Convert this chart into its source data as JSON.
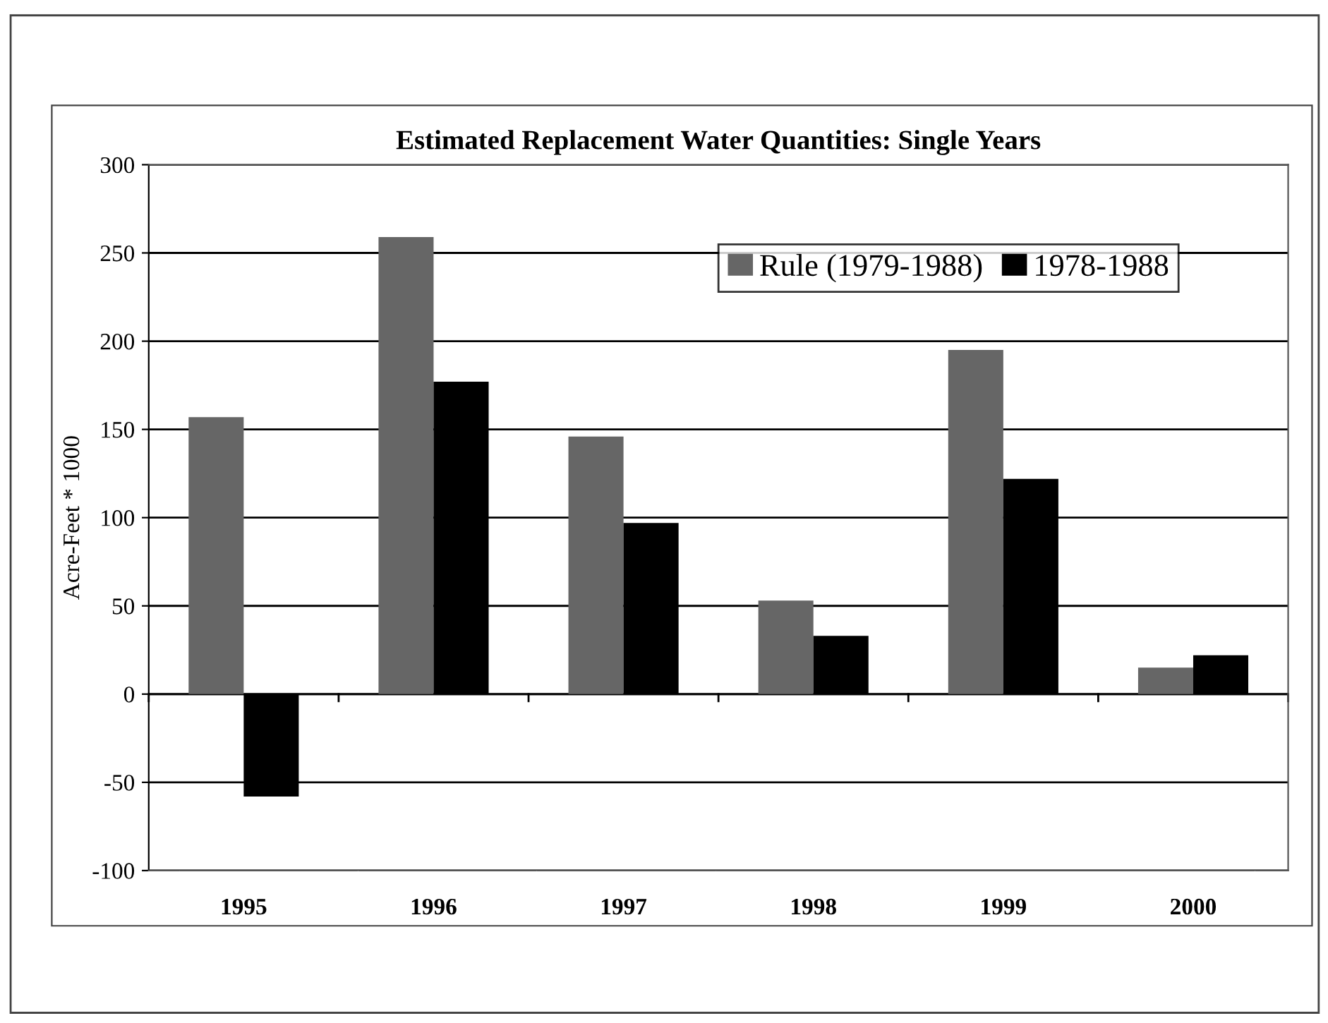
{
  "chart_data": {
    "type": "bar",
    "title": "Estimated Replacement Water Quantities: Single Years",
    "ylabel": "Acre-Feet * 1000",
    "categories": [
      "1995",
      "1996",
      "1997",
      "1998",
      "1999",
      "2000"
    ],
    "series": [
      {
        "name": "Rule (1979-1988)",
        "color": "#666666",
        "values": [
          157,
          259,
          146,
          53,
          195,
          15
        ]
      },
      {
        "name": "1978-1988",
        "color": "#000000",
        "values": [
          -58,
          177,
          97,
          33,
          122,
          22
        ]
      }
    ],
    "ylim": [
      -100,
      300
    ],
    "yticks": [
      -100,
      -50,
      0,
      50,
      100,
      150,
      200,
      250,
      300
    ],
    "grid": "y",
    "legend": "top right"
  }
}
